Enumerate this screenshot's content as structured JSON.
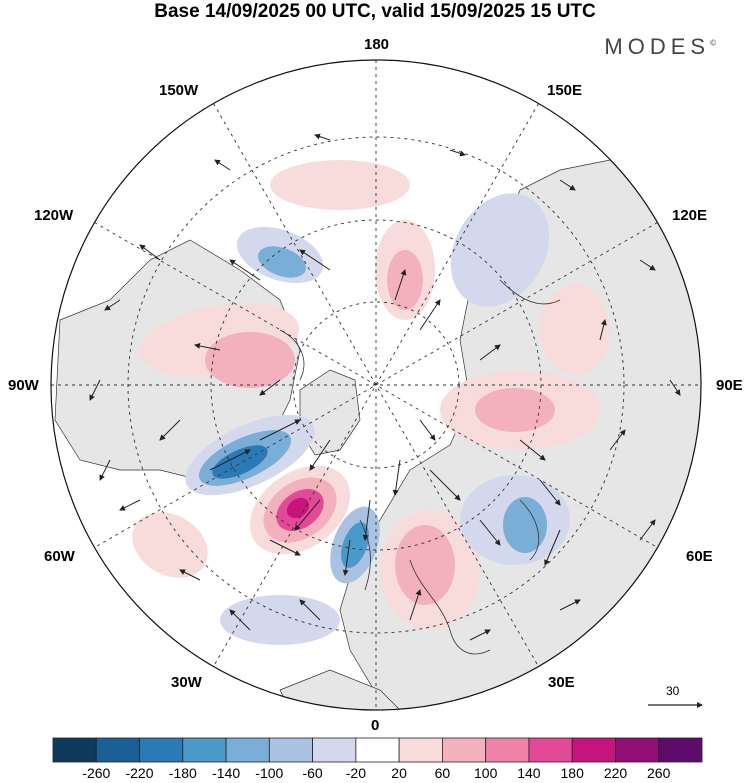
{
  "title": "Base 14/09/2025 00 UTC, valid 15/09/2025 15 UTC",
  "brand": {
    "name": "MODES",
    "mark": "©"
  },
  "longitude_labels": {
    "top": "180",
    "bottom": "0",
    "left": "90W",
    "right": "90E",
    "upper_left_1": "150W",
    "upper_left_2": "120W",
    "upper_right_1": "150E",
    "upper_right_2": "120E",
    "lower_left_1": "60W",
    "lower_left_2": "30W",
    "lower_right_1": "60E",
    "lower_right_2": "30E"
  },
  "wind_scale": {
    "value": "30"
  },
  "colorbar": {
    "labels": [
      "-260",
      "-220",
      "-180",
      "-140",
      "-100",
      "-60",
      "-20",
      "20",
      "60",
      "100",
      "140",
      "180",
      "220",
      "260"
    ],
    "colors": [
      "#0f3a5c",
      "#1a5f96",
      "#2a7ab8",
      "#4a9ac9",
      "#7aaed6",
      "#a9c2e2",
      "#d4d8ec",
      "#ffffff",
      "#f8dcdc",
      "#f3b1bd",
      "#ee83a7",
      "#e24a97",
      "#c5147c",
      "#930f75",
      "#5d0c6b"
    ]
  },
  "legend_colors": {
    "land": "#e6e6e6",
    "ocean": "#ffffff",
    "coastline": "#333333"
  }
}
